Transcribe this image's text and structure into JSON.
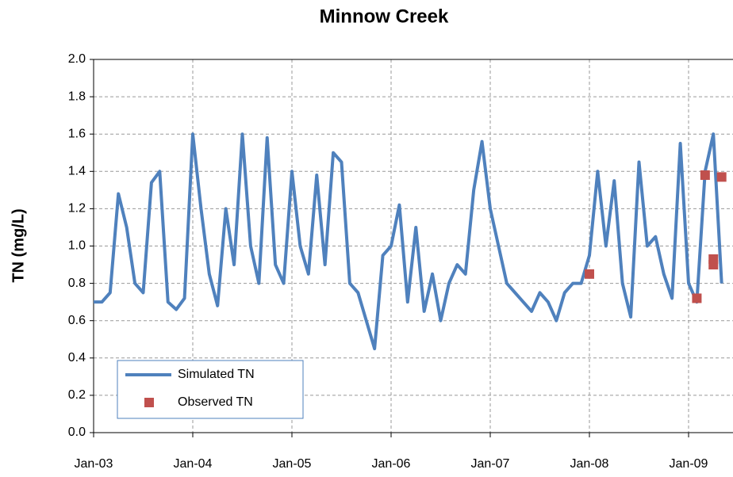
{
  "chart_data": {
    "type": "line",
    "title": "Minnow Creek",
    "y_label": "TN (mg/L)",
    "x": [
      "Jan-03",
      "Feb-03",
      "Mar-03",
      "Apr-03",
      "May-03",
      "Jun-03",
      "Jul-03",
      "Aug-03",
      "Sep-03",
      "Oct-03",
      "Nov-03",
      "Dec-03",
      "Jan-04",
      "Feb-04",
      "Mar-04",
      "Apr-04",
      "May-04",
      "Jun-04",
      "Jul-04",
      "Aug-04",
      "Sep-04",
      "Oct-04",
      "Nov-04",
      "Dec-04",
      "Jan-05",
      "Feb-05",
      "Mar-05",
      "Apr-05",
      "May-05",
      "Jun-05",
      "Jul-05",
      "Aug-05",
      "Sep-05",
      "Oct-05",
      "Nov-05",
      "Dec-05",
      "Jan-06",
      "Feb-06",
      "Mar-06",
      "Apr-06",
      "May-06",
      "Jun-06",
      "Jul-06",
      "Aug-06",
      "Sep-06",
      "Oct-06",
      "Nov-06",
      "Dec-06",
      "Jan-07",
      "Feb-07",
      "Mar-07",
      "Apr-07",
      "May-07",
      "Jun-07",
      "Jul-07",
      "Aug-07",
      "Sep-07",
      "Oct-07",
      "Nov-07",
      "Dec-07",
      "Jan-08",
      "Feb-08",
      "Mar-08",
      "Apr-08",
      "May-08",
      "Jun-08",
      "Jul-08",
      "Aug-08",
      "Sep-08",
      "Oct-08",
      "Nov-08",
      "Dec-08",
      "Jan-09",
      "Feb-09",
      "Mar-09",
      "Apr-09",
      "May-09"
    ],
    "series": [
      {
        "name": "Simulated TN",
        "color": "#4f81bd",
        "kind": "line",
        "values": [
          0.7,
          0.7,
          0.75,
          1.28,
          1.1,
          0.8,
          0.75,
          1.34,
          1.4,
          0.7,
          0.66,
          0.72,
          1.6,
          1.2,
          0.85,
          0.68,
          1.2,
          0.9,
          1.6,
          1.0,
          0.8,
          1.58,
          0.9,
          0.8,
          1.4,
          1.0,
          0.85,
          1.38,
          0.9,
          1.5,
          1.45,
          0.8,
          0.75,
          0.6,
          0.45,
          0.95,
          1.0,
          1.22,
          0.7,
          1.1,
          0.65,
          0.85,
          0.6,
          0.8,
          0.9,
          0.85,
          1.3,
          1.56,
          1.2,
          1.0,
          0.8,
          0.75,
          0.7,
          0.65,
          0.75,
          0.7,
          0.6,
          0.75,
          0.8,
          0.8,
          0.95,
          1.4,
          1.0,
          1.35,
          0.8,
          0.62,
          1.45,
          1.0,
          1.05,
          0.85,
          0.72,
          1.55,
          0.8,
          0.7,
          1.4,
          1.6,
          0.8
        ]
      },
      {
        "name": "Observed TN",
        "color": "#c0504d",
        "kind": "marker",
        "x": [
          "Jan-08",
          "Feb-09",
          "Mar-09",
          "Apr-09",
          "Apr-09",
          "May-09"
        ],
        "values": [
          0.85,
          0.72,
          1.38,
          0.9,
          0.93,
          1.37
        ]
      }
    ],
    "xticks": [
      "Jan-03",
      "Jan-04",
      "Jan-05",
      "Jan-06",
      "Jan-07",
      "Jan-08",
      "Jan-09"
    ],
    "ylim": [
      0,
      2
    ],
    "yticks": [
      {
        "value": 0,
        "label": "0.0"
      },
      {
        "value": 0.2,
        "label": "0.2"
      },
      {
        "value": 0.4,
        "label": "0.4"
      },
      {
        "value": 0.6,
        "label": "0.6"
      },
      {
        "value": 0.8,
        "label": "0.8"
      },
      {
        "value": 1,
        "label": "1.0"
      },
      {
        "value": 1.2,
        "label": "1.2"
      },
      {
        "value": 1.4,
        "label": "1.4"
      },
      {
        "value": 1.6,
        "label": "1.6"
      },
      {
        "value": 1.8,
        "label": "1.8"
      },
      {
        "value": 2,
        "label": "2.0"
      }
    ],
    "grid": true,
    "legend": "lower left"
  }
}
